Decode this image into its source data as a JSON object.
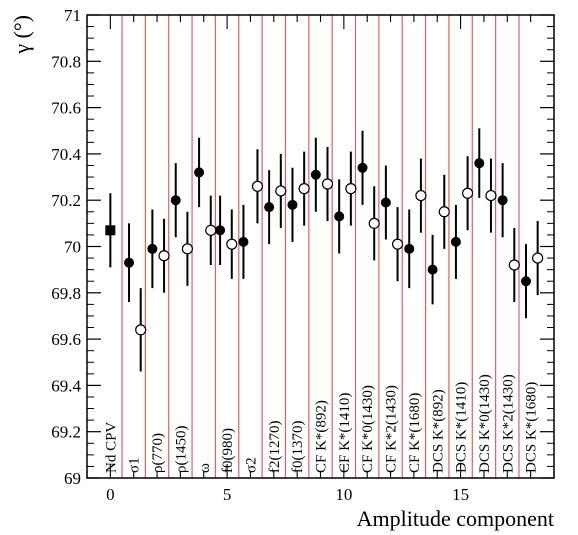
{
  "chart_data": {
    "type": "scatter",
    "xlabel": "Amplitude component",
    "ylabel": "γ (°)",
    "xlim": [
      -1,
      19
    ],
    "ylim": [
      69,
      71
    ],
    "x_ticks": [
      0,
      5,
      10,
      15
    ],
    "y_ticks": [
      69,
      69.2,
      69.4,
      69.6,
      69.8,
      70,
      70.2,
      70.4,
      70.6,
      70.8,
      71
    ],
    "y_tick_labels": [
      "69",
      "69.2",
      "69.4",
      "69.6",
      "69.8",
      "70",
      "70.2",
      "70.4",
      "70.6",
      "70.8",
      "71"
    ],
    "grid": false,
    "separator_color": "#e06060",
    "separators_x": [
      0.5,
      1.5,
      2.5,
      3.5,
      4.5,
      5.5,
      6.5,
      7.5,
      8.5,
      9.5,
      10.5,
      11.5,
      12.5,
      13.5,
      14.5,
      15.5,
      16.5,
      17.5
    ],
    "component_labels": [
      {
        "x": 0,
        "text": "Nd CPV"
      },
      {
        "x": 1,
        "text": "σ1"
      },
      {
        "x": 2,
        "text": "ρ(770)"
      },
      {
        "x": 3,
        "text": "ρ(1450)"
      },
      {
        "x": 4,
        "text": "ω"
      },
      {
        "x": 5,
        "text": "f0(980)"
      },
      {
        "x": 6,
        "text": "σ2"
      },
      {
        "x": 7,
        "text": "f2(1270)"
      },
      {
        "x": 8,
        "text": "f0(1370)"
      },
      {
        "x": 9,
        "text": "CF K*(892)"
      },
      {
        "x": 10,
        "text": "CF K*(1410)"
      },
      {
        "x": 11,
        "text": "CF K*0(1430)"
      },
      {
        "x": 12,
        "text": "CF K*2(1430)"
      },
      {
        "x": 13,
        "text": "CF K*(1680)"
      },
      {
        "x": 14,
        "text": "DCS K*(892)"
      },
      {
        "x": 15,
        "text": "DCS K*(1410)"
      },
      {
        "x": 16,
        "text": "DCS K*0(1430)"
      },
      {
        "x": 17,
        "text": "DCS K*2(1430)"
      },
      {
        "x": 18,
        "text": "DCS K*(1680)"
      }
    ],
    "points": [
      {
        "x": 0.0,
        "y": 70.07,
        "err": 0.16,
        "marker": "square"
      },
      {
        "x": 0.8,
        "y": 69.93,
        "err": 0.17,
        "marker": "filled"
      },
      {
        "x": 1.3,
        "y": 69.64,
        "err": 0.18,
        "marker": "open"
      },
      {
        "x": 1.8,
        "y": 69.99,
        "err": 0.17,
        "marker": "filled"
      },
      {
        "x": 2.3,
        "y": 69.96,
        "err": 0.16,
        "marker": "open"
      },
      {
        "x": 2.8,
        "y": 70.2,
        "err": 0.16,
        "marker": "filled"
      },
      {
        "x": 3.3,
        "y": 69.99,
        "err": 0.16,
        "marker": "open"
      },
      {
        "x": 3.8,
        "y": 70.32,
        "err": 0.15,
        "marker": "filled"
      },
      {
        "x": 4.3,
        "y": 70.07,
        "err": 0.15,
        "marker": "open"
      },
      {
        "x": 4.7,
        "y": 70.07,
        "err": 0.15,
        "marker": "filled"
      },
      {
        "x": 5.2,
        "y": 70.01,
        "err": 0.15,
        "marker": "open"
      },
      {
        "x": 5.7,
        "y": 70.02,
        "err": 0.16,
        "marker": "filled"
      },
      {
        "x": 6.3,
        "y": 70.26,
        "err": 0.16,
        "marker": "open"
      },
      {
        "x": 6.8,
        "y": 70.17,
        "err": 0.16,
        "marker": "filled"
      },
      {
        "x": 7.3,
        "y": 70.24,
        "err": 0.16,
        "marker": "open"
      },
      {
        "x": 7.8,
        "y": 70.18,
        "err": 0.16,
        "marker": "filled"
      },
      {
        "x": 8.3,
        "y": 70.25,
        "err": 0.16,
        "marker": "open"
      },
      {
        "x": 8.8,
        "y": 70.31,
        "err": 0.16,
        "marker": "filled"
      },
      {
        "x": 9.3,
        "y": 70.27,
        "err": 0.16,
        "marker": "open"
      },
      {
        "x": 9.8,
        "y": 70.13,
        "err": 0.16,
        "marker": "filled"
      },
      {
        "x": 10.3,
        "y": 70.25,
        "err": 0.16,
        "marker": "open"
      },
      {
        "x": 10.8,
        "y": 70.34,
        "err": 0.16,
        "marker": "filled"
      },
      {
        "x": 11.3,
        "y": 70.1,
        "err": 0.16,
        "marker": "open"
      },
      {
        "x": 11.8,
        "y": 70.19,
        "err": 0.16,
        "marker": "filled"
      },
      {
        "x": 12.3,
        "y": 70.01,
        "err": 0.16,
        "marker": "open"
      },
      {
        "x": 12.8,
        "y": 69.99,
        "err": 0.17,
        "marker": "filled"
      },
      {
        "x": 13.3,
        "y": 70.22,
        "err": 0.16,
        "marker": "open"
      },
      {
        "x": 13.8,
        "y": 69.9,
        "err": 0.15,
        "marker": "filled"
      },
      {
        "x": 14.3,
        "y": 70.15,
        "err": 0.16,
        "marker": "open"
      },
      {
        "x": 14.8,
        "y": 70.02,
        "err": 0.16,
        "marker": "filled"
      },
      {
        "x": 15.3,
        "y": 70.23,
        "err": 0.16,
        "marker": "open"
      },
      {
        "x": 15.8,
        "y": 70.36,
        "err": 0.15,
        "marker": "filled"
      },
      {
        "x": 16.3,
        "y": 70.22,
        "err": 0.16,
        "marker": "open"
      },
      {
        "x": 16.8,
        "y": 70.2,
        "err": 0.16,
        "marker": "filled"
      },
      {
        "x": 17.3,
        "y": 69.92,
        "err": 0.16,
        "marker": "open"
      },
      {
        "x": 17.8,
        "y": 69.85,
        "err": 0.16,
        "marker": "filled"
      },
      {
        "x": 18.3,
        "y": 69.95,
        "err": 0.16,
        "marker": "open"
      }
    ]
  }
}
